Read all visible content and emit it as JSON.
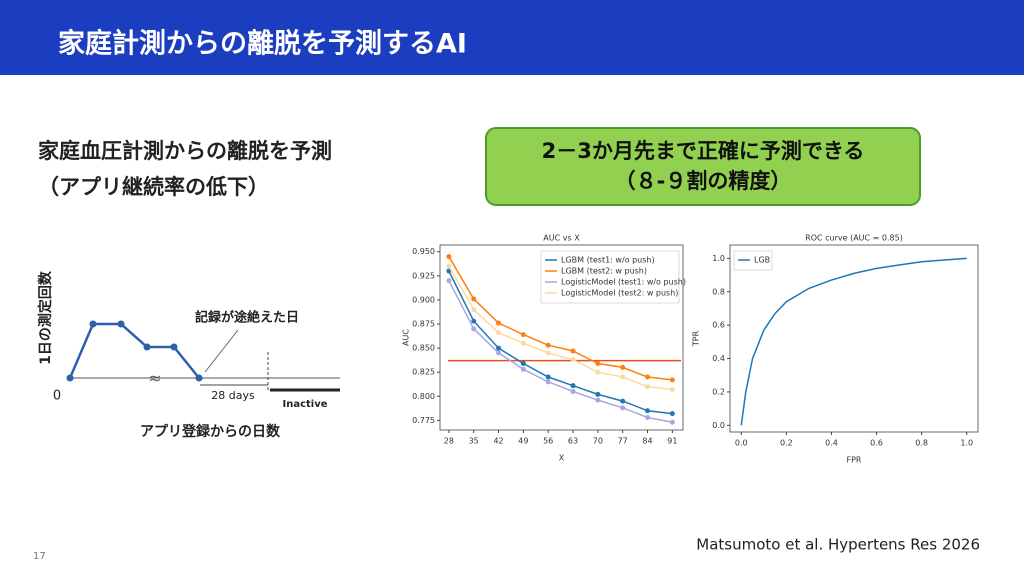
{
  "header": {
    "title": "家庭計測からの離脱を予測するAI"
  },
  "subtitle": [
    "家庭血圧計測からの離脱を予測",
    "（アプリ継続率の低下）"
  ],
  "callout": [
    "2－3か月先まで正確に予測できる",
    "（８-９割の精度）"
  ],
  "diagram": {
    "y_label": "1日の測定回数",
    "origin_label": 0,
    "event_label": "記録が途絶えた日",
    "duration_label": "28 days",
    "status_label": "Inactive",
    "x_label": "アプリ登録からの日数"
  },
  "citation": "Matsumoto et al. Hypertens Res 2026",
  "page_number": 17,
  "chart_data": [
    {
      "type": "line",
      "title": "AUC vs X",
      "x_label": "X",
      "y_label": "AUC",
      "x": [
        28,
        35,
        42,
        49,
        56,
        63,
        70,
        77,
        84,
        91
      ],
      "xlim": [
        25.5,
        94
      ],
      "xticks": [
        28,
        35,
        42,
        49,
        56,
        63,
        70,
        77,
        84,
        91
      ],
      "ylim": [
        0.765,
        0.957
      ],
      "yticks": [
        0.775,
        {
          "value": 0.8,
          "label": "0.800"
        },
        0.825,
        {
          "value": 0.85,
          "label": "0.850"
        },
        0.875,
        {
          "value": 0.9,
          "label": "0.900"
        },
        0.925,
        {
          "value": 0.95,
          "label": "0.950"
        }
      ],
      "markers": true,
      "legend": "upper right",
      "series": [
        {
          "name": "LGBM (test1: w/o push)",
          "color": "#1f77b4",
          "values": [
            0.93,
            0.878,
            0.85,
            0.834,
            0.82,
            0.811,
            0.802,
            0.795,
            0.785,
            0.782
          ]
        },
        {
          "name": "LGBM (test2: w push)",
          "color": "#ff7f0e",
          "values": [
            0.945,
            0.901,
            0.876,
            0.864,
            0.853,
            0.847,
            0.834,
            0.83,
            0.82,
            0.817
          ]
        },
        {
          "name": "LogisticModel (test1: w/o push)",
          "color": "#a9a6e0",
          "values": [
            0.92,
            0.87,
            0.845,
            0.828,
            0.815,
            0.805,
            0.796,
            0.788,
            0.778,
            0.773
          ]
        },
        {
          "name": "LogisticModel (test2: w push)",
          "color": "#fdd9a0",
          "values": [
            0.935,
            0.89,
            0.866,
            0.855,
            0.845,
            0.838,
            0.825,
            0.82,
            0.81,
            0.807
          ]
        }
      ],
      "reference_line": {
        "value": 0.837,
        "color": "#e8501a"
      }
    },
    {
      "type": "line",
      "title": "ROC curve (AUC = 0.85)",
      "x_label": "FPR",
      "y_label": "TPR",
      "xlim": [
        -0.05,
        1.05
      ],
      "xticks": [
        {
          "value": 0,
          "label": "0.0"
        },
        0.2,
        0.4,
        0.6,
        0.8,
        {
          "value": 1,
          "label": "1.0"
        }
      ],
      "ylim": [
        -0.04,
        1.08
      ],
      "yticks": [
        {
          "value": 0,
          "label": "0.0"
        },
        0.2,
        0.4,
        0.6,
        0.8,
        {
          "value": 1,
          "label": "1.0"
        }
      ],
      "markers": false,
      "legend": "upper left",
      "series": [
        {
          "name": "LGB",
          "color": "#1f77b4",
          "x": [
            0,
            0.02,
            0.05,
            0.1,
            0.15,
            0.2,
            0.3,
            0.4,
            0.5,
            0.6,
            0.7,
            0.8,
            0.9,
            1.0
          ],
          "values": [
            0,
            0.2,
            0.4,
            0.57,
            0.67,
            0.74,
            0.82,
            0.87,
            0.91,
            0.94,
            0.96,
            0.98,
            0.99,
            1.0
          ]
        }
      ]
    }
  ]
}
